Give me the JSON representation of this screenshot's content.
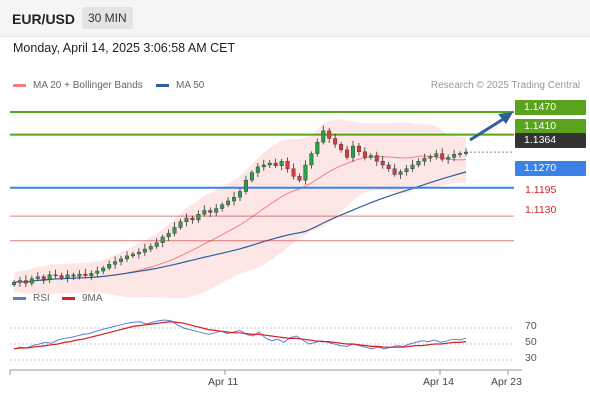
{
  "header": {
    "symbol": "EUR/USD",
    "timeframe": "30 MIN"
  },
  "datetime": "Monday, April 14, 2025 3:06:58 AM CET",
  "legend": {
    "items": [
      {
        "label": "MA 20 + Bollinger Bands",
        "color": "#f08080"
      },
      {
        "label": "MA 50",
        "color": "#2f5f9e"
      }
    ],
    "credit": "Research © 2025 Trading Central"
  },
  "rsi_legend": {
    "items": [
      {
        "label": "RSI",
        "color": "#5b7fd6"
      },
      {
        "label": "9MA",
        "color": "#d62020"
      }
    ]
  },
  "chart_data": [
    {
      "type": "candlestick",
      "ylim": [
        1.1,
        1.152
      ],
      "levels": [
        {
          "label": "1.1470",
          "value": 1.147,
          "color": "#5ba31f",
          "style": "tag"
        },
        {
          "label": "1.1410",
          "value": 1.141,
          "color": "#5ba31f",
          "style": "tag"
        },
        {
          "label": "1.1364",
          "value": 1.1364,
          "color": "#333333",
          "style": "tag"
        },
        {
          "label": "1.1270",
          "value": 1.127,
          "color": "#3b82e8",
          "style": "tag"
        },
        {
          "label": "1.1195",
          "value": 1.1195,
          "color": "#c62828",
          "style": "plain"
        },
        {
          "label": "1.1130",
          "value": 1.113,
          "color": "#c62828",
          "style": "plain"
        }
      ],
      "x_ticks": [
        "Apr 11",
        "Apr 14",
        "Apr 23"
      ],
      "close": [
        1.102,
        1.1025,
        1.1018,
        1.103,
        1.1035,
        1.1028,
        1.104,
        1.1038,
        1.1032,
        1.104,
        1.1036,
        1.1042,
        1.1038,
        1.1044,
        1.105,
        1.1058,
        1.1068,
        1.1075,
        1.1082,
        1.109,
        1.1095,
        1.11,
        1.1108,
        1.1115,
        1.1125,
        1.114,
        1.115,
        1.1165,
        1.118,
        1.119,
        1.1185,
        1.12,
        1.121,
        1.1205,
        1.1215,
        1.1225,
        1.1235,
        1.1245,
        1.126,
        1.129,
        1.131,
        1.1325,
        1.133,
        1.1335,
        1.1328,
        1.134,
        1.132,
        1.13,
        1.129,
        1.133,
        1.136,
        1.139,
        1.142,
        1.14,
        1.1385,
        1.137,
        1.135,
        1.138,
        1.1365,
        1.135,
        1.1355,
        1.134,
        1.133,
        1.132,
        1.1305,
        1.1312,
        1.132,
        1.133,
        1.134,
        1.1348,
        1.1352,
        1.136,
        1.1345,
        1.135,
        1.1358,
        1.136,
        1.1364
      ]
    },
    {
      "type": "line",
      "ylim": [
        20,
        90
      ],
      "y_ticks": [
        "70",
        "50",
        "30"
      ],
      "series": [
        {
          "name": "RSI",
          "values": [
            44,
            46,
            45,
            48,
            50,
            52,
            51,
            55,
            57,
            58,
            60,
            62,
            63,
            66,
            68,
            70,
            72,
            74,
            76,
            77,
            78,
            75,
            77,
            79,
            80,
            79,
            74,
            70,
            68,
            66,
            64,
            62,
            64,
            66,
            63,
            65,
            67,
            62,
            60,
            65,
            58,
            54,
            56,
            52,
            58,
            60,
            55,
            50,
            52,
            54,
            52,
            50,
            48,
            47,
            50,
            48,
            46,
            44,
            46,
            44,
            46,
            48,
            47,
            50,
            52,
            54,
            53,
            55,
            52,
            54,
            56,
            55,
            57
          ]
        },
        {
          "name": "9MA",
          "values": [
            44,
            45,
            45,
            46,
            47,
            48,
            49,
            50,
            52,
            53,
            55,
            56,
            58,
            60,
            62,
            64,
            66,
            68,
            70,
            72,
            73,
            74,
            75,
            76,
            77,
            78,
            77,
            76,
            74,
            72,
            70,
            68,
            67,
            66,
            65,
            64,
            64,
            63,
            62,
            62,
            61,
            60,
            59,
            58,
            57,
            57,
            56,
            55,
            54,
            53,
            53,
            52,
            51,
            50,
            50,
            49,
            48,
            47,
            47,
            46,
            46,
            46,
            46,
            47,
            48,
            48,
            49,
            50,
            50,
            51,
            52,
            52,
            53
          ]
        }
      ]
    }
  ]
}
